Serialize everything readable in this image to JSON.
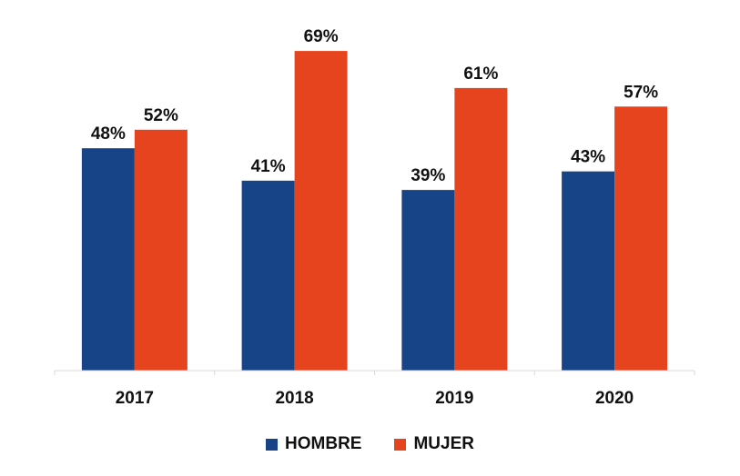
{
  "chart_data": {
    "type": "bar",
    "categories": [
      "2017",
      "2018",
      "2019",
      "2020"
    ],
    "series": [
      {
        "name": "HOMBRE",
        "color": "#174487",
        "values": [
          48,
          41,
          39,
          43
        ],
        "labels": [
          "48%",
          "41%",
          "39%",
          "43%"
        ]
      },
      {
        "name": "MUJER",
        "color": "#E5441E",
        "values": [
          52,
          69,
          61,
          57
        ],
        "labels": [
          "52%",
          "69%",
          "61%",
          "57%"
        ]
      }
    ],
    "title": "",
    "xlabel": "",
    "ylabel": "",
    "ylim": [
      0,
      80
    ],
    "grid": false,
    "legend_position": "bottom",
    "value_format": "percent"
  }
}
